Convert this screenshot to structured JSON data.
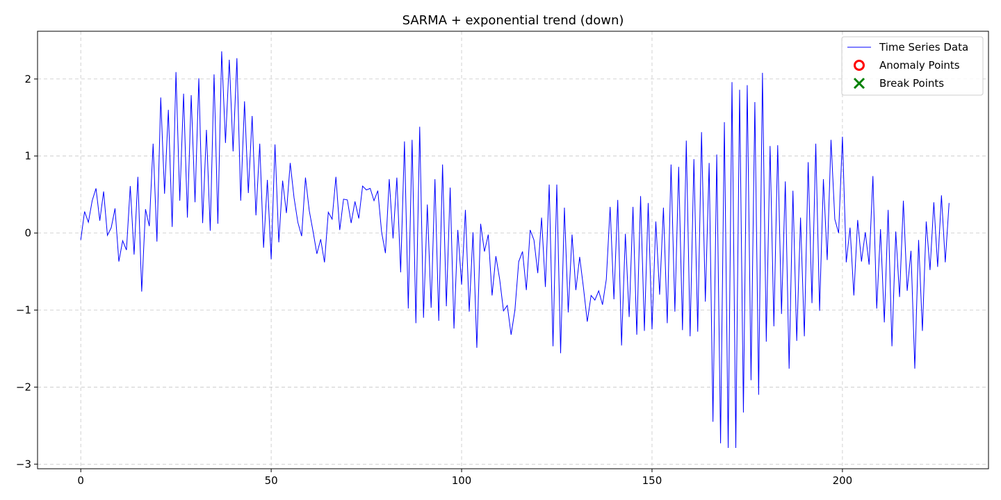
{
  "chart_data": {
    "type": "line",
    "title": "SARMA + exponential trend (down)",
    "xlabel": "",
    "ylabel": "",
    "xlim": [
      -11.35,
      238.35
    ],
    "ylim": [
      -3.06,
      2.62
    ],
    "xticks": [
      0,
      50,
      100,
      150,
      200
    ],
    "yticks": [
      -3,
      -2,
      -1,
      0,
      1,
      2
    ],
    "grid": true,
    "legend_position": "top-right",
    "legend": [
      {
        "label": "Time Series Data",
        "marker": "line",
        "color": "#0000ff"
      },
      {
        "label": "Anomaly Points",
        "marker": "circle",
        "color": "#ff0000"
      },
      {
        "label": "Break Points",
        "marker": "x",
        "color": "#008000"
      }
    ],
    "series": [
      {
        "name": "Time Series Data",
        "color": "#0000ff",
        "x_start": 0,
        "x_step": 1,
        "values": [
          -0.09,
          0.28,
          0.14,
          0.42,
          0.58,
          0.16,
          0.54,
          -0.03,
          0.07,
          0.32,
          -0.37,
          -0.1,
          -0.22,
          0.61,
          -0.28,
          0.73,
          -0.76,
          0.31,
          0.09,
          1.16,
          -0.11,
          1.76,
          0.51,
          1.6,
          0.08,
          2.09,
          0.42,
          1.81,
          0.2,
          1.79,
          0.4,
          2.01,
          0.13,
          1.34,
          0.03,
          2.06,
          0.12,
          2.36,
          1.17,
          2.25,
          1.06,
          2.27,
          0.42,
          1.71,
          0.52,
          1.52,
          0.23,
          1.16,
          -0.19,
          0.69,
          -0.34,
          1.15,
          -0.12,
          0.68,
          0.26,
          0.91,
          0.46,
          0.14,
          -0.04,
          0.72,
          0.29,
          0.02,
          -0.27,
          -0.08,
          -0.38,
          0.27,
          0.18,
          0.73,
          0.04,
          0.44,
          0.43,
          0.13,
          0.41,
          0.19,
          0.61,
          0.56,
          0.58,
          0.42,
          0.55,
          0.01,
          -0.26,
          0.7,
          -0.07,
          0.72,
          -0.51,
          1.19,
          -0.98,
          1.21,
          -1.17,
          1.38,
          -1.1,
          0.37,
          -0.97,
          0.7,
          -1.14,
          0.89,
          -0.95,
          0.59,
          -1.24,
          0.04,
          -0.67,
          0.3,
          -1.02,
          0.01,
          -1.49,
          0.12,
          -0.24,
          -0.02,
          -0.81,
          -0.3,
          -0.6,
          -1.01,
          -0.94,
          -1.32,
          -1.0,
          -0.37,
          -0.24,
          -0.74,
          0.04,
          -0.09,
          -0.52,
          0.2,
          -0.7,
          0.63,
          -1.47,
          0.63,
          -1.56,
          0.33,
          -1.03,
          -0.02,
          -0.74,
          -0.31,
          -0.71,
          -1.15,
          -0.81,
          -0.87,
          -0.75,
          -0.93,
          -0.6,
          0.34,
          -0.86,
          0.43,
          -1.46,
          -0.01,
          -1.09,
          0.34,
          -1.32,
          0.48,
          -1.27,
          0.39,
          -1.25,
          0.15,
          -0.8,
          0.33,
          -1.17,
          0.89,
          -1.02,
          0.86,
          -1.26,
          1.2,
          -1.34,
          0.96,
          -1.28,
          1.31,
          -0.89,
          0.91,
          -2.45,
          1.02,
          -2.73,
          1.44,
          -2.79,
          1.96,
          -2.79,
          1.86,
          -2.33,
          1.92,
          -1.91,
          1.7,
          -2.1,
          2.08,
          -1.41,
          1.13,
          -1.21,
          1.14,
          -1.05,
          0.67,
          -1.76,
          0.55,
          -1.4,
          0.2,
          -1.34,
          0.92,
          -0.91,
          1.16,
          -1.01,
          0.7,
          -0.35,
          1.21,
          0.18,
          0.0,
          1.25,
          -0.38,
          0.07,
          -0.81,
          0.17,
          -0.37,
          0.01,
          -0.41,
          0.74,
          -0.98,
          0.05,
          -1.16,
          0.3,
          -1.47,
          0.02,
          -0.83,
          0.42,
          -0.75,
          -0.23,
          -1.76,
          -0.09,
          -1.27,
          0.15,
          -0.48,
          0.4,
          -0.44,
          0.49,
          -0.38,
          0.39
        ]
      }
    ]
  }
}
